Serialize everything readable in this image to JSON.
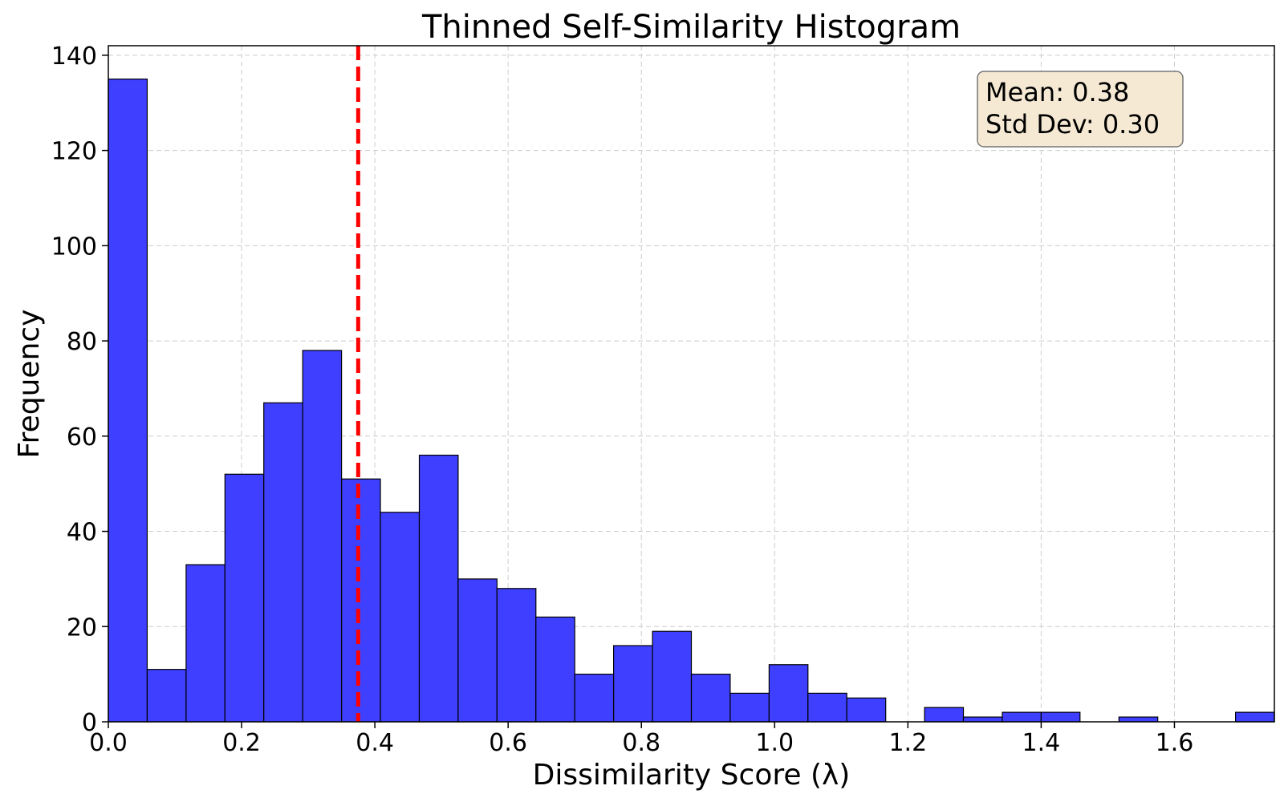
{
  "chart_data": {
    "type": "bar",
    "title": "Thinned Self-Similarity Histogram",
    "xlabel": "Dissimilarity Score (λ)",
    "ylabel": "Frequency",
    "xlim": [
      0.0,
      1.75
    ],
    "ylim": [
      0,
      142
    ],
    "xticks": [
      0.0,
      0.2,
      0.4,
      0.6,
      0.8,
      1.0,
      1.2,
      1.4,
      1.6
    ],
    "xtick_labels": [
      "0.0",
      "0.2",
      "0.4",
      "0.6",
      "0.8",
      "1.0",
      "1.2",
      "1.4",
      "1.6"
    ],
    "yticks": [
      0,
      20,
      40,
      60,
      80,
      100,
      120,
      140
    ],
    "ytick_labels": [
      "0",
      "20",
      "40",
      "60",
      "80",
      "100",
      "120",
      "140"
    ],
    "bin_edges": [
      0.0,
      0.0583,
      0.1167,
      0.175,
      0.2333,
      0.2917,
      0.35,
      0.4083,
      0.4667,
      0.525,
      0.5833,
      0.6417,
      0.7,
      0.7583,
      0.8167,
      0.875,
      0.9333,
      0.9917,
      1.05,
      1.1083,
      1.1667,
      1.225,
      1.2833,
      1.3417,
      1.4,
      1.4583,
      1.5167,
      1.575,
      1.6333,
      1.6917,
      1.75
    ],
    "counts": [
      135,
      11,
      33,
      52,
      67,
      78,
      51,
      44,
      56,
      30,
      28,
      22,
      10,
      16,
      19,
      10,
      6,
      12,
      6,
      5,
      0,
      3,
      1,
      2,
      2,
      0,
      1,
      0,
      0,
      2
    ],
    "mean_line": 0.375,
    "grid": true,
    "bar_color": "#3f3fff",
    "bar_edge_color": "#000000",
    "mean_line_color": "#ff0000",
    "stats_box": {
      "mean_text": "Mean: 0.38",
      "std_text": "Std Dev: 0.30",
      "background": "#f5e9d3",
      "placement": "top-right"
    }
  }
}
